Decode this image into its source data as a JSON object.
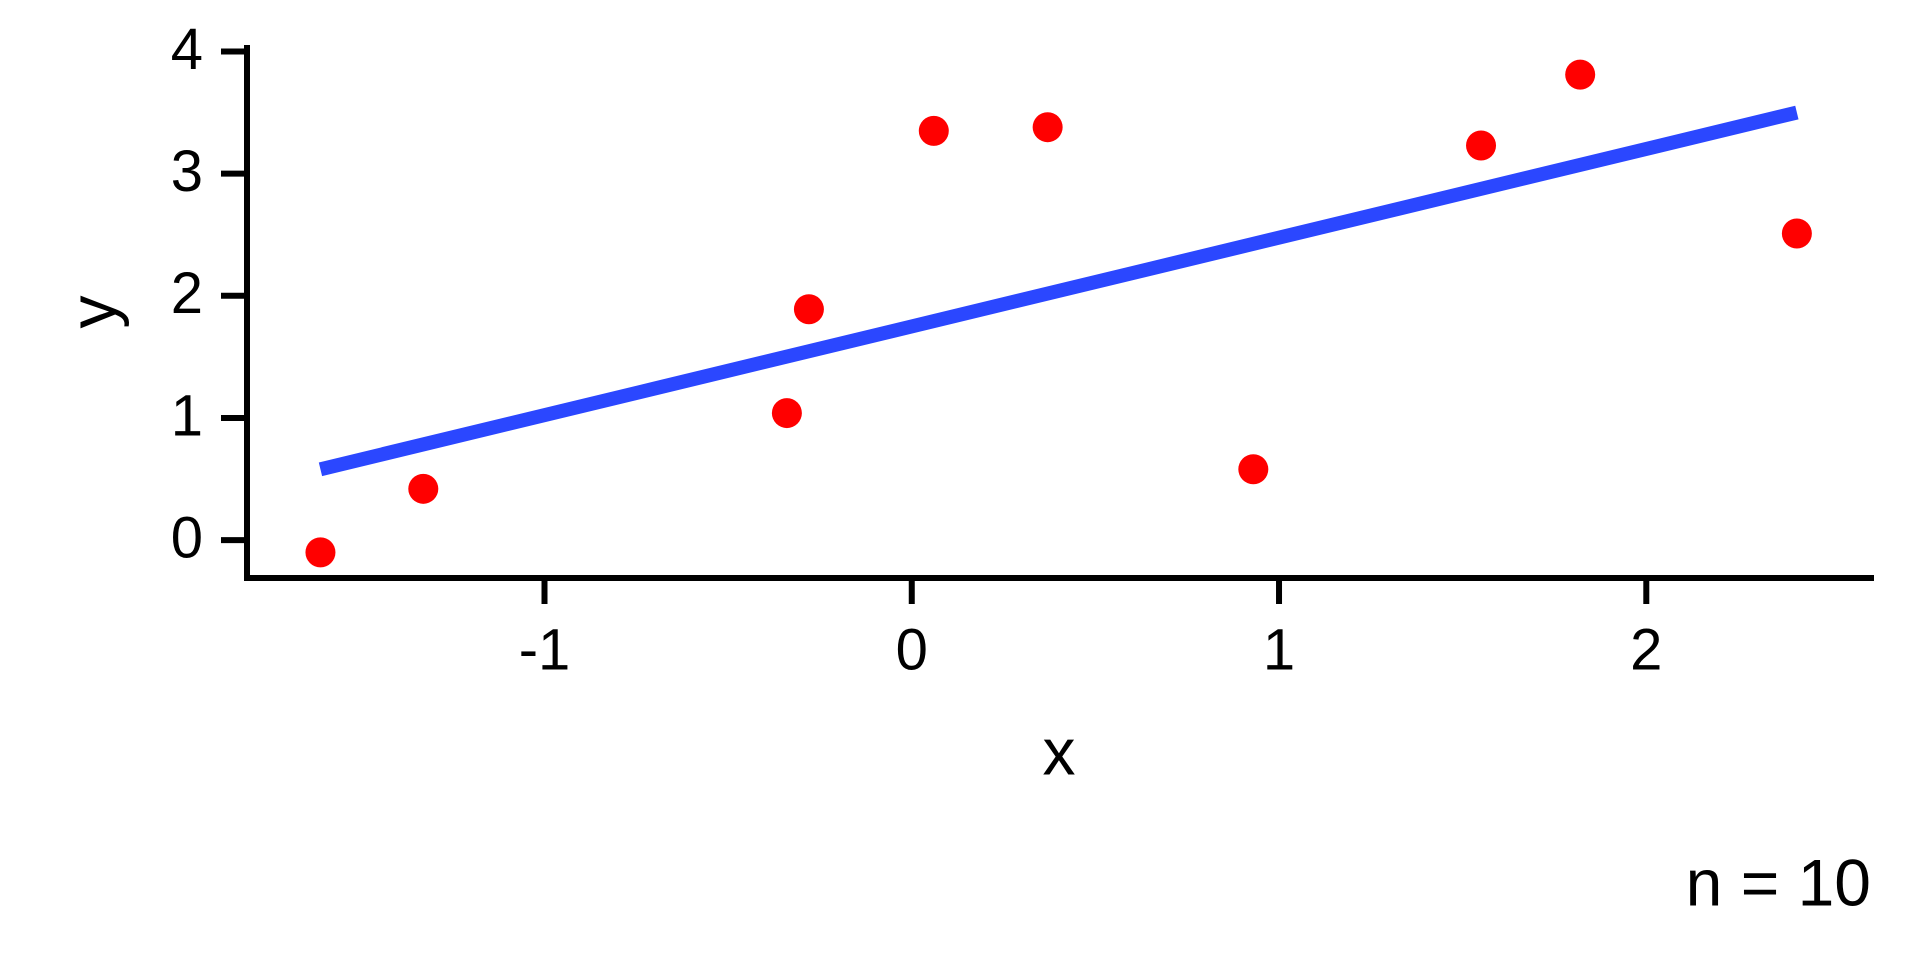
{
  "chart_data": {
    "type": "scatter",
    "xlabel": "x",
    "ylabel": "y",
    "annotation": "n = 10",
    "xlim": [
      -1.81,
      2.62
    ],
    "ylim": [
      -0.31,
      4.02
    ],
    "xticks": [
      -1,
      0,
      1,
      2
    ],
    "yticks": [
      0,
      1,
      2,
      3,
      4
    ],
    "points": {
      "color": "#ff0000",
      "x": [
        -1.61,
        -1.33,
        -0.34,
        -0.28,
        0.06,
        0.37,
        0.93,
        1.55,
        1.82,
        2.41
      ],
      "y": [
        -0.1,
        0.42,
        1.04,
        1.89,
        3.35,
        3.38,
        0.58,
        3.23,
        3.81,
        2.51
      ]
    },
    "fit": {
      "color": "#2b47ff",
      "x": [
        -1.61,
        2.41
      ],
      "y": [
        0.58,
        3.5
      ]
    }
  }
}
